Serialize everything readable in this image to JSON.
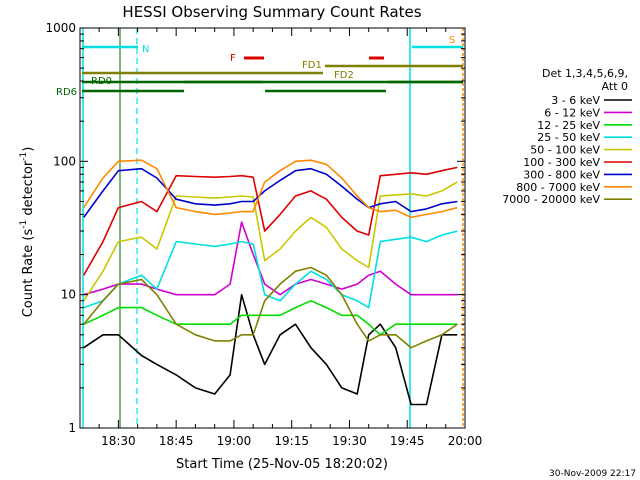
{
  "chart_data": {
    "type": "line",
    "title": "HESSI Observing Summary Count Rates",
    "ylabel_parts": [
      "Count Rate (s",
      "-1",
      " detector",
      "-1",
      ")"
    ],
    "xlabel": "Start Time (25-Nov-05 18:20:02)",
    "yscale": "log",
    "ylim": [
      1,
      1000
    ],
    "xlim": [
      "18:20:02",
      "20:00"
    ],
    "y_ticks": [
      1,
      10,
      100,
      1000
    ],
    "y_tick_labels": [
      "1",
      "10",
      "100",
      "1000"
    ],
    "x_ticks": [
      "18:30",
      "18:45",
      "19:00",
      "19:15",
      "19:30",
      "19:45",
      "20:00"
    ],
    "legend_placement": "right",
    "legend_header": [
      "Det 1,3,4,5,6,9,",
      "Att 0"
    ],
    "footer_timestamp": "30-Nov-2009 22:17",
    "series": [
      {
        "name": "3 - 6 keV",
        "color": "#000000",
        "x": [
          "18:21",
          "18:26",
          "18:30",
          "18:36",
          "18:40",
          "18:45",
          "18:50",
          "18:55",
          "18:59",
          "19:02",
          "19:05",
          "19:08",
          "19:12",
          "19:16",
          "19:20",
          "19:24",
          "19:28",
          "19:32",
          "19:35",
          "19:38",
          "19:42",
          "19:46",
          "19:50",
          "19:54",
          "19:58"
        ],
        "values": [
          4,
          5,
          5,
          3.5,
          3,
          2.5,
          2,
          1.8,
          2.5,
          10,
          5,
          3,
          5,
          6,
          4,
          3,
          2,
          1.8,
          5,
          6,
          4,
          1.5,
          1.5,
          5,
          5
        ]
      },
      {
        "name": "6 - 12 keV",
        "color": "#d000d0",
        "x": [
          "18:21",
          "18:26",
          "18:30",
          "18:36",
          "18:40",
          "18:45",
          "18:50",
          "18:55",
          "18:59",
          "19:02",
          "19:05",
          "19:08",
          "19:12",
          "19:16",
          "19:20",
          "19:24",
          "19:28",
          "19:32",
          "19:35",
          "19:38",
          "19:42",
          "19:46",
          "19:50",
          "19:54",
          "19:58"
        ],
        "values": [
          10,
          11,
          12,
          12,
          11,
          10,
          10,
          10,
          12,
          35,
          20,
          12,
          10,
          12,
          13,
          12,
          11,
          12,
          14,
          15,
          12,
          10,
          10,
          10,
          10
        ]
      },
      {
        "name": "12 - 25 keV",
        "color": "#00dd00",
        "x": [
          "18:21",
          "18:26",
          "18:30",
          "18:36",
          "18:40",
          "18:45",
          "18:50",
          "18:55",
          "18:59",
          "19:02",
          "19:05",
          "19:08",
          "19:12",
          "19:16",
          "19:20",
          "19:24",
          "19:28",
          "19:32",
          "19:35",
          "19:38",
          "19:42",
          "19:46",
          "19:50",
          "19:54",
          "19:58"
        ],
        "values": [
          6,
          7,
          8,
          8,
          7,
          6,
          6,
          6,
          6,
          7,
          7,
          7,
          7,
          8,
          9,
          8,
          7,
          7,
          6,
          5,
          6,
          6,
          6,
          6,
          6
        ]
      },
      {
        "name": "25 - 50 keV",
        "color": "#00e0e0",
        "x": [
          "18:21",
          "18:26",
          "18:30",
          "18:36",
          "18:40",
          "18:45",
          "18:50",
          "18:55",
          "18:59",
          "19:02",
          "19:05",
          "19:08",
          "19:12",
          "19:16",
          "19:20",
          "19:24",
          "19:28",
          "19:32",
          "19:35",
          "19:38",
          "19:42",
          "19:46",
          "19:50",
          "19:54",
          "19:58"
        ],
        "values": [
          8,
          9,
          12,
          14,
          11,
          25,
          24,
          23,
          24,
          25,
          24,
          10,
          9,
          12,
          15,
          13,
          10,
          9,
          8,
          25,
          26,
          27,
          25,
          28,
          30
        ]
      },
      {
        "name": "50 - 100 keV",
        "color": "#c8c800",
        "x": [
          "18:21",
          "18:26",
          "18:30",
          "18:36",
          "18:40",
          "18:45",
          "18:50",
          "18:55",
          "18:59",
          "19:02",
          "19:05",
          "19:08",
          "19:12",
          "19:16",
          "19:20",
          "19:24",
          "19:28",
          "19:32",
          "19:35",
          "19:38",
          "19:42",
          "19:46",
          "19:50",
          "19:54",
          "19:58"
        ],
        "values": [
          9,
          15,
          25,
          27,
          22,
          55,
          54,
          53,
          54,
          55,
          54,
          18,
          22,
          30,
          38,
          32,
          22,
          18,
          16,
          55,
          56,
          57,
          55,
          60,
          70
        ]
      },
      {
        "name": "100 - 300 keV",
        "color": "#dd0000",
        "x": [
          "18:21",
          "18:26",
          "18:30",
          "18:36",
          "18:40",
          "18:45",
          "18:50",
          "18:55",
          "18:59",
          "19:02",
          "19:05",
          "19:08",
          "19:12",
          "19:16",
          "19:20",
          "19:24",
          "19:28",
          "19:32",
          "19:35",
          "19:38",
          "19:42",
          "19:46",
          "19:50",
          "19:54",
          "19:58"
        ],
        "values": [
          14,
          25,
          45,
          50,
          42,
          78,
          77,
          76,
          77,
          78,
          76,
          30,
          40,
          55,
          60,
          52,
          38,
          30,
          28,
          78,
          80,
          82,
          80,
          85,
          90
        ]
      },
      {
        "name": "300 - 800 keV",
        "color": "#0000cc",
        "x": [
          "18:21",
          "18:26",
          "18:30",
          "18:36",
          "18:40",
          "18:45",
          "18:50",
          "18:55",
          "18:59",
          "19:02",
          "19:05",
          "19:08",
          "19:12",
          "19:16",
          "19:20",
          "19:24",
          "19:28",
          "19:32",
          "19:35",
          "19:38",
          "19:42",
          "19:46",
          "19:50",
          "19:54",
          "19:58"
        ],
        "values": [
          38,
          60,
          85,
          88,
          75,
          52,
          48,
          47,
          48,
          50,
          50,
          60,
          72,
          85,
          88,
          80,
          65,
          52,
          45,
          48,
          50,
          42,
          44,
          48,
          50
        ]
      },
      {
        "name": "800 - 7000 keV",
        "color": "#ff8800",
        "x": [
          "18:21",
          "18:26",
          "18:30",
          "18:36",
          "18:40",
          "18:45",
          "18:50",
          "18:55",
          "18:59",
          "19:02",
          "19:05",
          "19:08",
          "19:12",
          "19:16",
          "19:20",
          "19:24",
          "19:28",
          "19:32",
          "19:35",
          "19:38",
          "19:42",
          "19:46",
          "19:50",
          "19:54",
          "19:58"
        ],
        "values": [
          45,
          75,
          100,
          102,
          88,
          45,
          42,
          40,
          41,
          42,
          42,
          70,
          85,
          100,
          102,
          95,
          75,
          55,
          45,
          42,
          43,
          38,
          40,
          42,
          45
        ]
      },
      {
        "name": "7000 - 20000 keV",
        "color": "#808000",
        "x": [
          "18:21",
          "18:26",
          "18:30",
          "18:36",
          "18:40",
          "18:45",
          "18:50",
          "18:55",
          "18:59",
          "19:02",
          "19:05",
          "19:08",
          "19:12",
          "19:16",
          "19:20",
          "19:24",
          "19:28",
          "19:32",
          "19:35",
          "19:38",
          "19:42",
          "19:46",
          "19:50",
          "19:54",
          "19:58"
        ],
        "values": [
          6,
          9,
          12,
          13,
          10,
          6,
          5,
          4.5,
          4.5,
          5,
          5,
          9,
          12,
          15,
          16,
          14,
          10,
          6,
          4.5,
          5,
          5,
          4,
          4.5,
          5,
          6
        ]
      }
    ],
    "annotations": {
      "labels": [
        {
          "text": "N",
          "color": "#00e0e0"
        },
        {
          "text": "F",
          "color": "#dd0000"
        },
        {
          "text": "FD1",
          "color": "#808000"
        },
        {
          "text": "FD2",
          "color": "#808000"
        },
        {
          "text": "S",
          "color": "#ff8800"
        },
        {
          "text": "RD0",
          "color": "#006600"
        },
        {
          "text": "RD6",
          "color": "#006600"
        }
      ]
    }
  }
}
